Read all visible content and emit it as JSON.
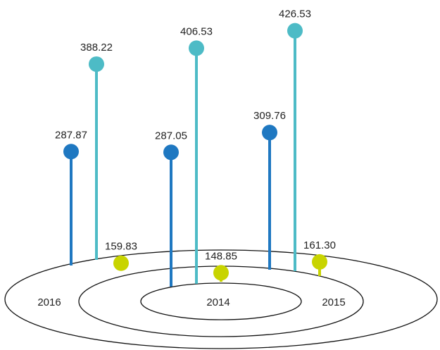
{
  "chart_data": {
    "type": "lollipop",
    "groups": [
      {
        "label": "2016",
        "values": [
          287.87,
          388.22,
          159.83
        ]
      },
      {
        "label": "2014",
        "values": [
          287.05,
          406.53,
          148.85
        ]
      },
      {
        "label": "2015",
        "values": [
          309.76,
          426.53,
          161.3
        ]
      }
    ],
    "value_labels": [
      [
        "287.87",
        "388.22",
        "159.83"
      ],
      [
        "287.05",
        "406.53",
        "148.85"
      ],
      [
        "309.76",
        "426.53",
        "161.30"
      ]
    ],
    "colors": {
      "series_1": "#1f78c1",
      "series_2": "#4dbbc6",
      "series_3": "#c8d400",
      "ellipse": "#111111",
      "text": "#222222"
    },
    "legend": "none",
    "grid": false
  }
}
